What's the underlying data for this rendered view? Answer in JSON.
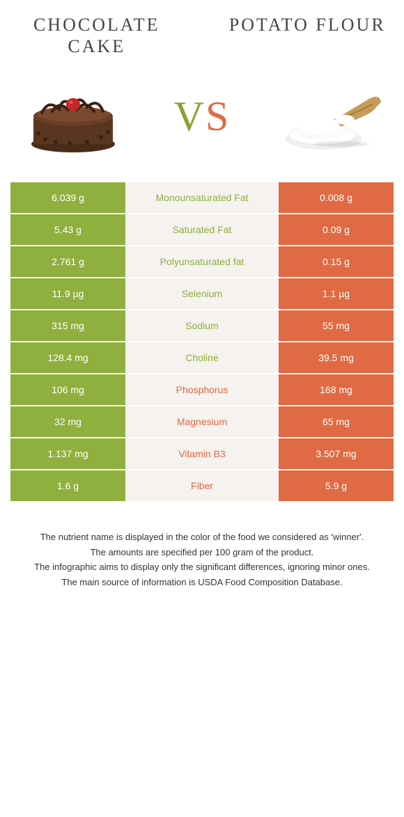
{
  "colors": {
    "green": "#8fb03e",
    "orange": "#e06a43",
    "beige": "#f5f2ef",
    "text_dark": "#444444"
  },
  "header": {
    "left_title": "CHOCOLATE CAKE",
    "right_title": "POTATO FLOUR"
  },
  "vs": {
    "v": "V",
    "s": "S"
  },
  "rows": [
    {
      "left": "6.039 g",
      "label": "Monounsaturated Fat",
      "right": "0.008 g",
      "winner": "left"
    },
    {
      "left": "5.43 g",
      "label": "Saturated Fat",
      "right": "0.09 g",
      "winner": "left"
    },
    {
      "left": "2.761 g",
      "label": "Polyunsaturated fat",
      "right": "0.15 g",
      "winner": "left"
    },
    {
      "left": "11.9 µg",
      "label": "Selenium",
      "right": "1.1 µg",
      "winner": "left"
    },
    {
      "left": "315 mg",
      "label": "Sodium",
      "right": "55 mg",
      "winner": "left"
    },
    {
      "left": "128.4 mg",
      "label": "Choline",
      "right": "39.5 mg",
      "winner": "left"
    },
    {
      "left": "106 mg",
      "label": "Phosphorus",
      "right": "168 mg",
      "winner": "right"
    },
    {
      "left": "32 mg",
      "label": "Magnesium",
      "right": "65 mg",
      "winner": "right"
    },
    {
      "left": "1.137 mg",
      "label": "Vitamin B3",
      "right": "3.507 mg",
      "winner": "right"
    },
    {
      "left": "1.6 g",
      "label": "Fiber",
      "right": "5.9 g",
      "winner": "right"
    }
  ],
  "footnotes": [
    "The nutrient name is displayed in the color of the food we considered as 'winner'.",
    "The amounts are specified per 100 gram of the product.",
    "The infographic aims to display only the significant differences, ignoring minor ones.",
    "The main source of information is USDA Food Composition Database."
  ]
}
